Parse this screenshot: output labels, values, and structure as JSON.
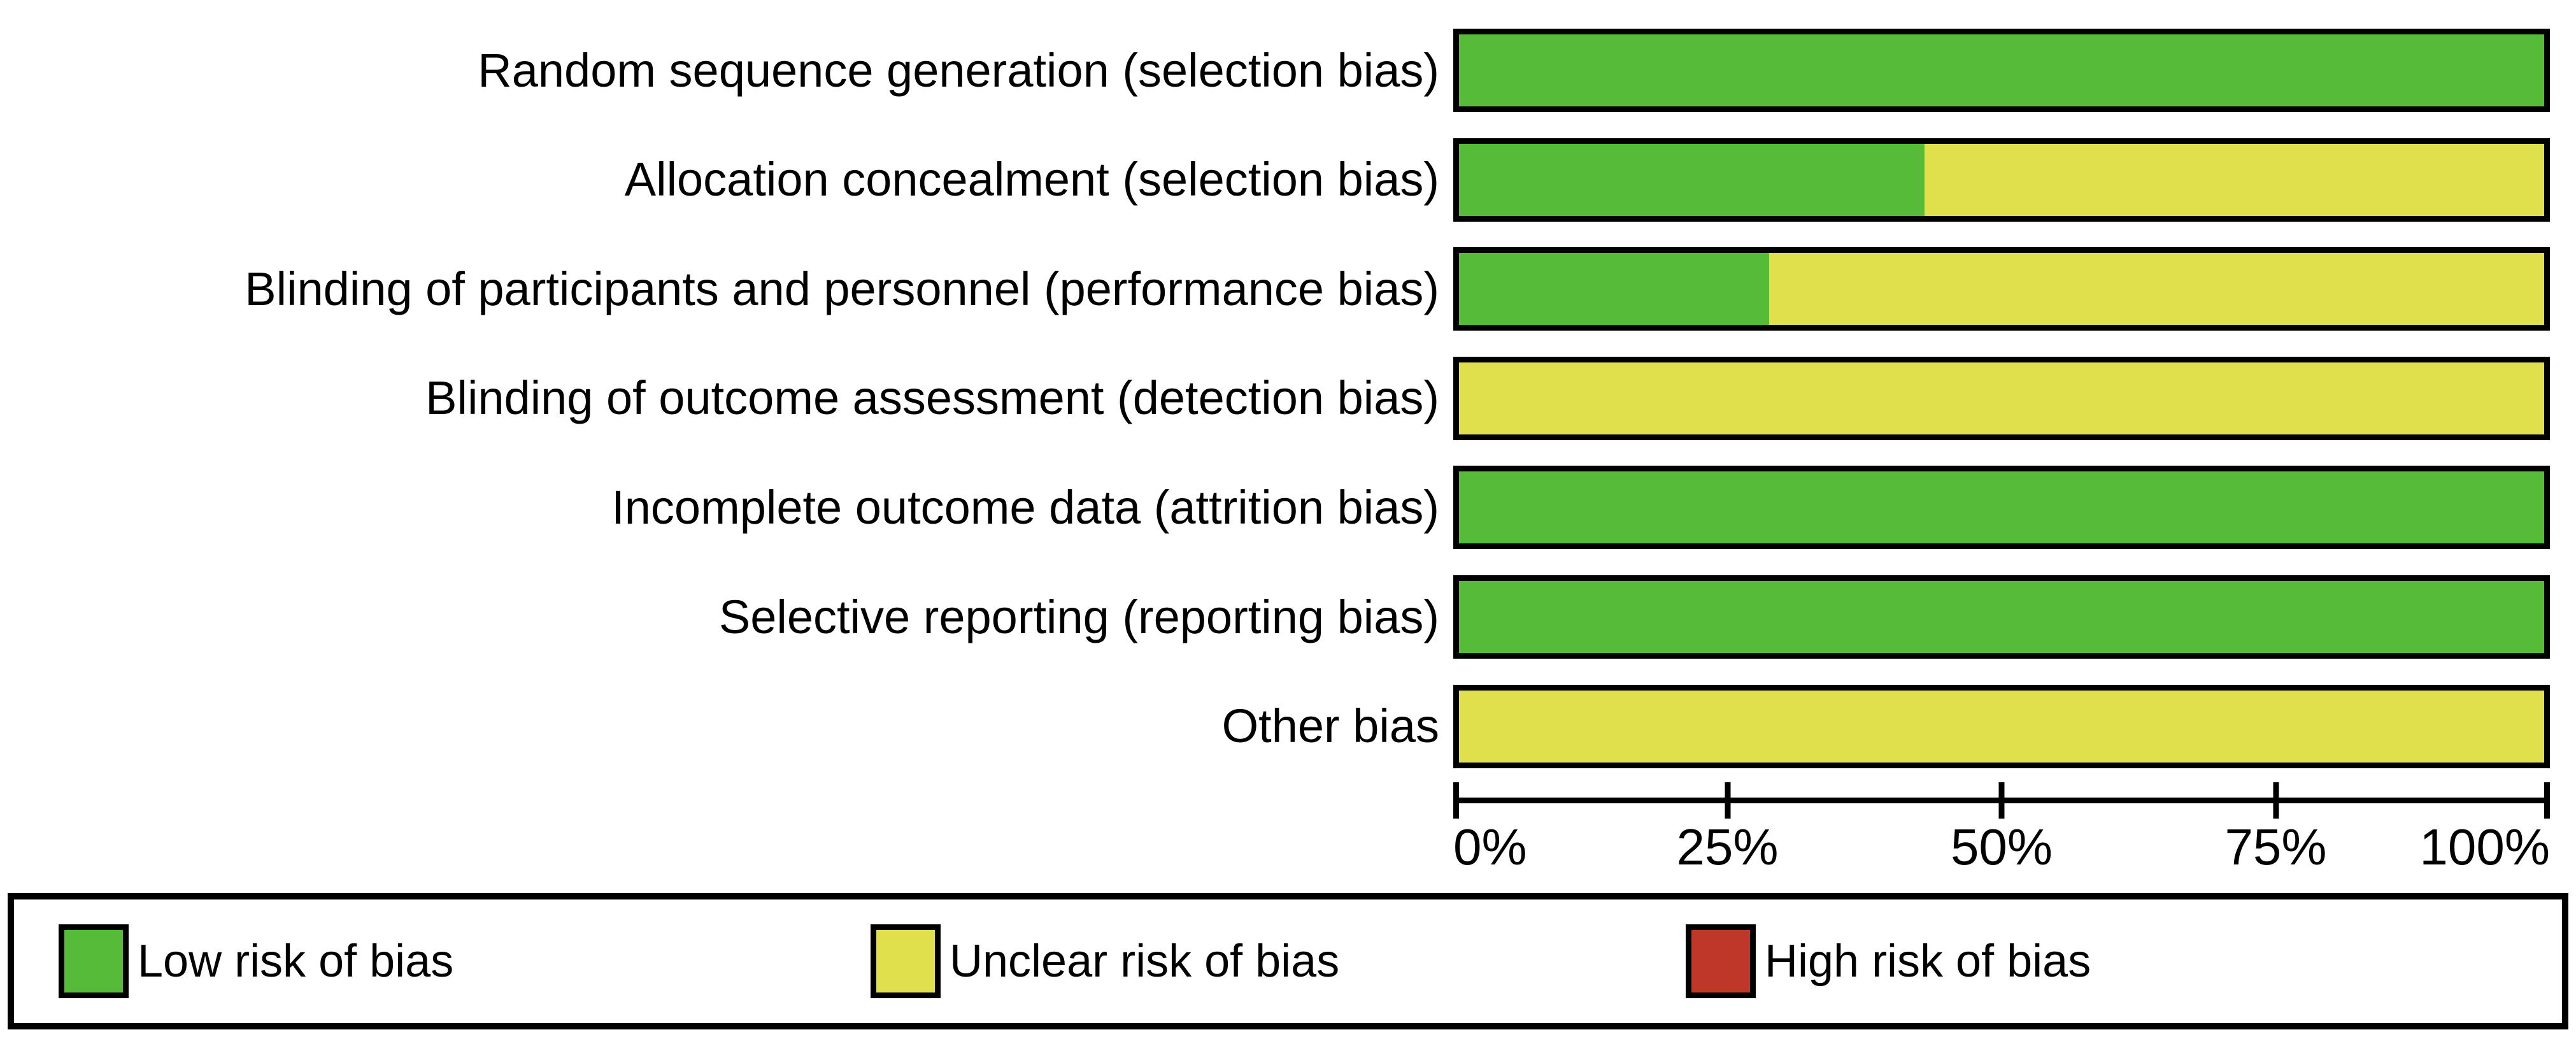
{
  "chart_data": {
    "type": "bar",
    "orientation": "horizontal",
    "stacked": true,
    "unit": "percent",
    "title": "",
    "xlabel": "",
    "ylabel": "",
    "categories": [
      "Random sequence generation (selection bias)",
      "Allocation concealment (selection bias)",
      "Blinding of participants and personnel (performance bias)",
      "Blinding of outcome assessment (detection bias)",
      "Incomplete outcome data (attrition bias)",
      "Selective reporting (reporting bias)",
      "Other bias"
    ],
    "series": [
      {
        "name": "Low risk of bias",
        "color": "#57BB3A",
        "values": [
          100,
          42.9,
          28.6,
          0,
          100,
          100,
          0
        ]
      },
      {
        "name": "Unclear risk of bias",
        "color": "#DFE04B",
        "values": [
          0,
          57.1,
          71.4,
          100,
          0,
          0,
          100
        ]
      },
      {
        "name": "High risk of bias",
        "color": "#BE3728",
        "values": [
          0,
          0,
          0,
          0,
          0,
          0,
          0
        ]
      }
    ],
    "x_axis": {
      "range": [
        0,
        100
      ],
      "tick_labels": [
        "0%",
        "25%",
        "50%",
        "75%",
        "100%"
      ]
    },
    "legend": {
      "position": "bottom"
    },
    "grid": false
  },
  "colors": {
    "low": "#57BB3A",
    "unclear": "#DFE04B",
    "high": "#BE3728",
    "border": "#000000",
    "background": "#ffffff"
  }
}
